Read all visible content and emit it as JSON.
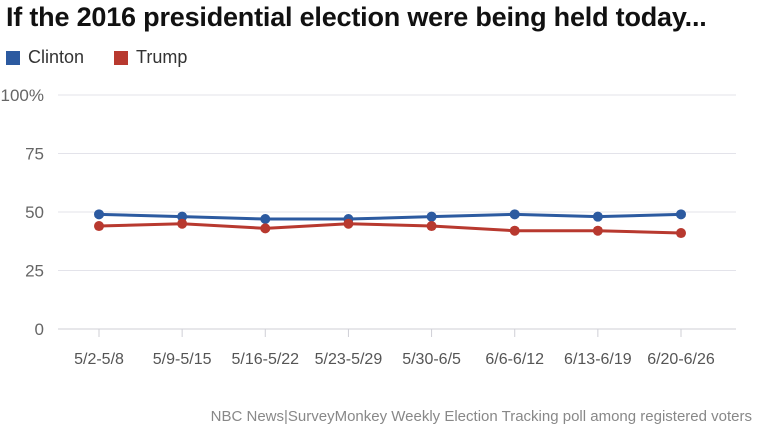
{
  "chart_data": {
    "type": "line",
    "title": "If the 2016 presidential election were being held today...",
    "categories": [
      "5/2-5/8",
      "5/9-5/15",
      "5/16-5/22",
      "5/23-5/29",
      "5/30-6/5",
      "6/6-6/12",
      "6/13-6/19",
      "6/20-6/26"
    ],
    "series": [
      {
        "name": "Clinton",
        "color": "#2c5aa0",
        "values": [
          49,
          48,
          47,
          47,
          48,
          49,
          48,
          49
        ]
      },
      {
        "name": "Trump",
        "color": "#b8392f",
        "values": [
          44,
          45,
          43,
          45,
          44,
          42,
          42,
          41
        ]
      }
    ],
    "ylim": [
      0,
      100
    ],
    "yticks": [
      0,
      25,
      50,
      75,
      100
    ],
    "ytick_labels": [
      "0",
      "25",
      "50",
      "75",
      "100%"
    ],
    "grid": true,
    "legend": "top-left",
    "source": "NBC News|SurveyMonkey Weekly Election Tracking poll among registered voters"
  }
}
